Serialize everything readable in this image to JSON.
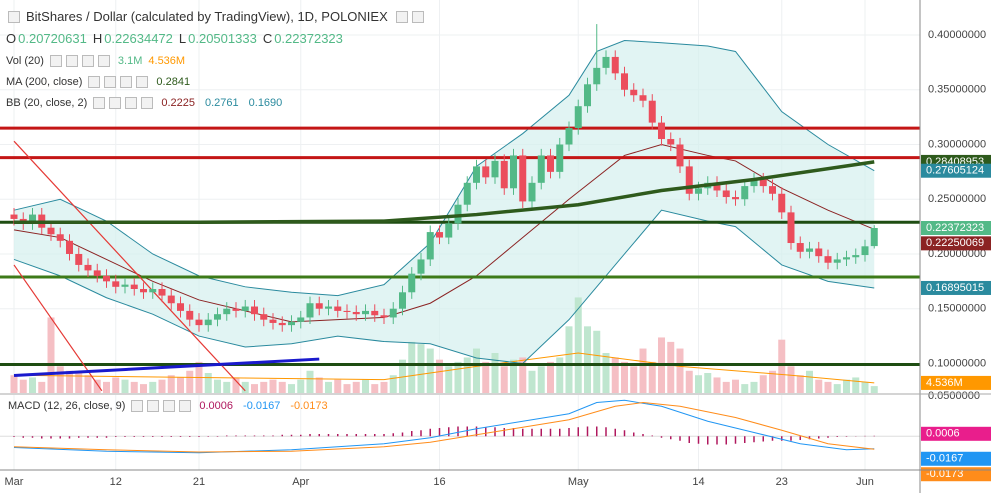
{
  "chart_data": {
    "type": "candlestick",
    "title": "BitShares / Dollar (calculated by TradingView), 1D, POLONIEX",
    "ohlc_labels": [
      "O",
      "H",
      "L",
      "C"
    ],
    "up_color": "#53b987",
    "down_color": "#eb4d5c",
    "ylim": [
      0.073,
      0.432
    ],
    "yticks": [
      {
        "value": 0.4,
        "label": "0.40000000"
      },
      {
        "value": 0.35,
        "label": "0.35000000"
      },
      {
        "value": 0.3,
        "label": "0.30000000"
      },
      {
        "value": 0.25,
        "label": "0.25000000"
      },
      {
        "value": 0.2,
        "label": "0.20000000"
      },
      {
        "value": 0.15,
        "label": "0.15000000"
      },
      {
        "value": 0.1,
        "label": "0.10000000"
      },
      {
        "value": 0.05,
        "label": "0.0500000"
      }
    ],
    "xticks": [
      {
        "value": 0,
        "label": "Mar"
      },
      {
        "value": 11,
        "label": "12"
      },
      {
        "value": 20,
        "label": "21"
      },
      {
        "value": 31,
        "label": "Apr"
      },
      {
        "value": 46,
        "label": "16"
      },
      {
        "value": 61,
        "label": "May"
      },
      {
        "value": 74,
        "label": "14"
      },
      {
        "value": 83,
        "label": "23"
      },
      {
        "value": 92,
        "label": "Jun"
      }
    ],
    "candles": [
      [
        0.236,
        0.242,
        0.226,
        0.232
      ],
      [
        0.232,
        0.238,
        0.222,
        0.228
      ],
      [
        0.228,
        0.242,
        0.222,
        0.236
      ],
      [
        0.236,
        0.242,
        0.218,
        0.224
      ],
      [
        0.224,
        0.23,
        0.212,
        0.218
      ],
      [
        0.218,
        0.224,
        0.206,
        0.212
      ],
      [
        0.212,
        0.218,
        0.194,
        0.2
      ],
      [
        0.2,
        0.206,
        0.184,
        0.19
      ],
      [
        0.19,
        0.196,
        0.179,
        0.185
      ],
      [
        0.185,
        0.191,
        0.174,
        0.18
      ],
      [
        0.18,
        0.186,
        0.169,
        0.175
      ],
      [
        0.175,
        0.181,
        0.164,
        0.17
      ],
      [
        0.17,
        0.178,
        0.164,
        0.172
      ],
      [
        0.172,
        0.178,
        0.162,
        0.168
      ],
      [
        0.168,
        0.174,
        0.159,
        0.165
      ],
      [
        0.165,
        0.174,
        0.159,
        0.168
      ],
      [
        0.168,
        0.174,
        0.156,
        0.162
      ],
      [
        0.162,
        0.168,
        0.149,
        0.155
      ],
      [
        0.155,
        0.161,
        0.142,
        0.148
      ],
      [
        0.148,
        0.154,
        0.134,
        0.14
      ],
      [
        0.14,
        0.146,
        0.129,
        0.135
      ],
      [
        0.135,
        0.146,
        0.129,
        0.14
      ],
      [
        0.14,
        0.151,
        0.134,
        0.145
      ],
      [
        0.145,
        0.156,
        0.139,
        0.15
      ],
      [
        0.15,
        0.156,
        0.142,
        0.148
      ],
      [
        0.148,
        0.158,
        0.142,
        0.152
      ],
      [
        0.152,
        0.158,
        0.139,
        0.145
      ],
      [
        0.145,
        0.151,
        0.134,
        0.14
      ],
      [
        0.14,
        0.146,
        0.131,
        0.137
      ],
      [
        0.137,
        0.143,
        0.129,
        0.135
      ],
      [
        0.135,
        0.144,
        0.129,
        0.138
      ],
      [
        0.138,
        0.148,
        0.132,
        0.142
      ],
      [
        0.142,
        0.161,
        0.136,
        0.155
      ],
      [
        0.155,
        0.161,
        0.144,
        0.15
      ],
      [
        0.15,
        0.158,
        0.144,
        0.152
      ],
      [
        0.152,
        0.158,
        0.142,
        0.148
      ],
      [
        0.148,
        0.154,
        0.141,
        0.147
      ],
      [
        0.147,
        0.153,
        0.139,
        0.145
      ],
      [
        0.145,
        0.154,
        0.139,
        0.148
      ],
      [
        0.148,
        0.154,
        0.138,
        0.144
      ],
      [
        0.144,
        0.15,
        0.136,
        0.142
      ],
      [
        0.142,
        0.156,
        0.136,
        0.15
      ],
      [
        0.15,
        0.171,
        0.144,
        0.165
      ],
      [
        0.165,
        0.188,
        0.159,
        0.182
      ],
      [
        0.182,
        0.201,
        0.176,
        0.195
      ],
      [
        0.195,
        0.226,
        0.189,
        0.22
      ],
      [
        0.22,
        0.226,
        0.209,
        0.215
      ],
      [
        0.215,
        0.234,
        0.209,
        0.228
      ],
      [
        0.228,
        0.251,
        0.222,
        0.245
      ],
      [
        0.245,
        0.271,
        0.239,
        0.265
      ],
      [
        0.265,
        0.286,
        0.259,
        0.28
      ],
      [
        0.28,
        0.286,
        0.264,
        0.27
      ],
      [
        0.27,
        0.291,
        0.264,
        0.285
      ],
      [
        0.285,
        0.291,
        0.254,
        0.26
      ],
      [
        0.26,
        0.296,
        0.254,
        0.29
      ],
      [
        0.29,
        0.296,
        0.242,
        0.248
      ],
      [
        0.248,
        0.271,
        0.242,
        0.265
      ],
      [
        0.265,
        0.296,
        0.259,
        0.29
      ],
      [
        0.29,
        0.296,
        0.269,
        0.275
      ],
      [
        0.275,
        0.306,
        0.269,
        0.3
      ],
      [
        0.3,
        0.321,
        0.294,
        0.315
      ],
      [
        0.315,
        0.341,
        0.309,
        0.335
      ],
      [
        0.335,
        0.361,
        0.329,
        0.355
      ],
      [
        0.355,
        0.41,
        0.349,
        0.37
      ],
      [
        0.37,
        0.386,
        0.364,
        0.38
      ],
      [
        0.38,
        0.386,
        0.359,
        0.365
      ],
      [
        0.365,
        0.371,
        0.344,
        0.35
      ],
      [
        0.35,
        0.356,
        0.339,
        0.345
      ],
      [
        0.345,
        0.351,
        0.334,
        0.34
      ],
      [
        0.34,
        0.346,
        0.314,
        0.32
      ],
      [
        0.32,
        0.326,
        0.299,
        0.305
      ],
      [
        0.305,
        0.311,
        0.294,
        0.3
      ],
      [
        0.3,
        0.306,
        0.274,
        0.28
      ],
      [
        0.28,
        0.286,
        0.249,
        0.255
      ],
      [
        0.255,
        0.266,
        0.249,
        0.26
      ],
      [
        0.26,
        0.271,
        0.254,
        0.265
      ],
      [
        0.265,
        0.271,
        0.252,
        0.258
      ],
      [
        0.258,
        0.264,
        0.246,
        0.252
      ],
      [
        0.252,
        0.258,
        0.244,
        0.25
      ],
      [
        0.25,
        0.268,
        0.244,
        0.262
      ],
      [
        0.262,
        0.274,
        0.256,
        0.268
      ],
      [
        0.268,
        0.274,
        0.256,
        0.262
      ],
      [
        0.262,
        0.268,
        0.249,
        0.255
      ],
      [
        0.255,
        0.261,
        0.232,
        0.238
      ],
      [
        0.238,
        0.244,
        0.204,
        0.21
      ],
      [
        0.21,
        0.216,
        0.196,
        0.202
      ],
      [
        0.202,
        0.211,
        0.196,
        0.205
      ],
      [
        0.205,
        0.211,
        0.192,
        0.198
      ],
      [
        0.198,
        0.204,
        0.186,
        0.192
      ],
      [
        0.192,
        0.201,
        0.186,
        0.195
      ],
      [
        0.195,
        0.203,
        0.189,
        0.197
      ],
      [
        0.197,
        0.205,
        0.191,
        0.199
      ],
      [
        0.199,
        0.213,
        0.193,
        0.207
      ],
      [
        0.20720631,
        0.22634472,
        0.20501333,
        0.22372323
      ]
    ],
    "volume": {
      "name": "Vol (20)",
      "vlim": [
        0,
        45
      ],
      "values": [
        8,
        6,
        7,
        5,
        34,
        12,
        10,
        9,
        8,
        6,
        5,
        7,
        6,
        5,
        4,
        5,
        6,
        8,
        7,
        10,
        14,
        9,
        6,
        5,
        7,
        5,
        4,
        5,
        6,
        5,
        4,
        6,
        10,
        7,
        5,
        6,
        4,
        5,
        6,
        4,
        5,
        8,
        15,
        23,
        22,
        20,
        15,
        12,
        14,
        16,
        20,
        14,
        18,
        12,
        15,
        16,
        10,
        12,
        14,
        16,
        30,
        43,
        30,
        28,
        18,
        16,
        14,
        12,
        20,
        14,
        25,
        23,
        20,
        10,
        8,
        9,
        7,
        5,
        6,
        4,
        5,
        8,
        10,
        24,
        12,
        8,
        10,
        6,
        5,
        4,
        6,
        7,
        5,
        3.1
      ],
      "last_label": "3.1M",
      "ma": {
        "x": [
          0,
          20,
          40,
          50,
          61,
          72,
          84,
          93
        ],
        "values": [
          8,
          7,
          6,
          12,
          18,
          12,
          8,
          4.536
        ],
        "last_label": "4.536M",
        "color": "#ff9800"
      },
      "up_color": "#bfe6cf",
      "down_color": "#f5bfc4"
    },
    "ma200": {
      "name": "MA (200, close)",
      "color": "#2e5a1c",
      "x": [
        0,
        20,
        40,
        50,
        61,
        70,
        80,
        93
      ],
      "values": [
        0.229,
        0.229,
        0.23,
        0.236,
        0.245,
        0.258,
        0.268,
        0.28408953
      ],
      "header_label": "0.2841"
    },
    "bb": {
      "name": "BB (20, close, 2)",
      "line_color": "#2a8a9e",
      "basis_color": "#8b2323",
      "fill": "#d4f0ee",
      "x": [
        0,
        5,
        10,
        15,
        20,
        25,
        30,
        35,
        40,
        45,
        50,
        55,
        60,
        63,
        66,
        70,
        75,
        78,
        83,
        88,
        93
      ],
      "upper": [
        0.24,
        0.25,
        0.23,
        0.2,
        0.18,
        0.17,
        0.165,
        0.162,
        0.172,
        0.21,
        0.28,
        0.31,
        0.345,
        0.385,
        0.395,
        0.393,
        0.39,
        0.385,
        0.33,
        0.3,
        0.27605124
      ],
      "middle": [
        0.222,
        0.215,
        0.195,
        0.175,
        0.158,
        0.148,
        0.138,
        0.14,
        0.142,
        0.155,
        0.18,
        0.215,
        0.25,
        0.27,
        0.29,
        0.3,
        0.29,
        0.285,
        0.26,
        0.24,
        0.22250069
      ],
      "lower": [
        0.195,
        0.18,
        0.16,
        0.145,
        0.125,
        0.115,
        0.118,
        0.125,
        0.12,
        0.118,
        0.105,
        0.1,
        0.14,
        0.17,
        0.2,
        0.24,
        0.23,
        0.225,
        0.19,
        0.175,
        0.16895015
      ],
      "header_labels": [
        "0.2225",
        "0.2761",
        "0.1690"
      ]
    },
    "hlines": [
      {
        "value": 0.315,
        "color": "#c41616"
      },
      {
        "value": 0.288,
        "color": "#c41616"
      },
      {
        "value": 0.229,
        "color": "#1e4d12"
      },
      {
        "value": 0.179,
        "color": "#3d7a18"
      },
      {
        "value": 0.099,
        "color": "#1e4d12"
      }
    ],
    "trend_lines": [
      {
        "x": [
          0,
          25
        ],
        "values": [
          0.303,
          0.075
        ],
        "color": "#e53935"
      },
      {
        "x": [
          0,
          9.5
        ],
        "values": [
          0.19,
          0.075
        ],
        "color": "#e53935"
      },
      {
        "x": [
          0,
          33
        ],
        "values": [
          0.089,
          0.104
        ],
        "color": "#1a1acd"
      }
    ],
    "macd": {
      "name": "MACD (12, 26, close, 9)",
      "lim": [
        -0.045,
        0.055
      ],
      "hist_color": "#b0185e",
      "macd_color": "#2196f3",
      "signal_color": "#ff8c1a",
      "histogram": [
        -0.001,
        -0.002,
        -0.002,
        -0.003,
        -0.003,
        -0.003,
        -0.003,
        -0.002,
        -0.002,
        -0.002,
        -0.002,
        -0.001,
        -0.001,
        -0.001,
        -0.001,
        -0.001,
        -0.001,
        -0.001,
        -0.001,
        -0.001,
        -0.001,
        0,
        0,
        0.001,
        0.001,
        0.001,
        0.001,
        0.001,
        0.001,
        0.002,
        0.002,
        0.002,
        0.003,
        0.003,
        0.003,
        0.003,
        0.003,
        0.003,
        0.003,
        0.003,
        0.003,
        0.004,
        0.005,
        0.007,
        0.008,
        0.01,
        0.011,
        0.012,
        0.013,
        0.013,
        0.013,
        0.012,
        0.012,
        0.011,
        0.011,
        0.01,
        0.01,
        0.01,
        0.01,
        0.01,
        0.011,
        0.012,
        0.013,
        0.013,
        0.012,
        0.01,
        0.008,
        0.005,
        0.003,
        0.001,
        -0.002,
        -0.004,
        -0.006,
        -0.009,
        -0.01,
        -0.011,
        -0.011,
        -0.011,
        -0.01,
        -0.009,
        -0.008,
        -0.007,
        -0.006,
        -0.006,
        -0.006,
        -0.005,
        -0.004,
        -0.003,
        -0.002,
        -0.001,
        0,
        0.0003,
        0.0005,
        0.0006
      ],
      "x": [
        0,
        10,
        20,
        30,
        40,
        45,
        50,
        55,
        60,
        63,
        66,
        70,
        75,
        80,
        85,
        90,
        93
      ],
      "macd_values": [
        -0.015,
        -0.02,
        -0.022,
        -0.018,
        -0.01,
        -0.002,
        0.01,
        0.02,
        0.03,
        0.045,
        0.048,
        0.04,
        0.02,
        0.005,
        -0.01,
        -0.018,
        -0.0167
      ],
      "signal_x": [
        0,
        10,
        20,
        30,
        40,
        45,
        50,
        55,
        60,
        65,
        68,
        72,
        78,
        83,
        88,
        93
      ],
      "signal_values": [
        -0.014,
        -0.018,
        -0.021,
        -0.02,
        -0.014,
        -0.008,
        0.002,
        0.012,
        0.022,
        0.04,
        0.045,
        0.04,
        0.025,
        0.008,
        -0.01,
        -0.0173
      ]
    }
  }
}
